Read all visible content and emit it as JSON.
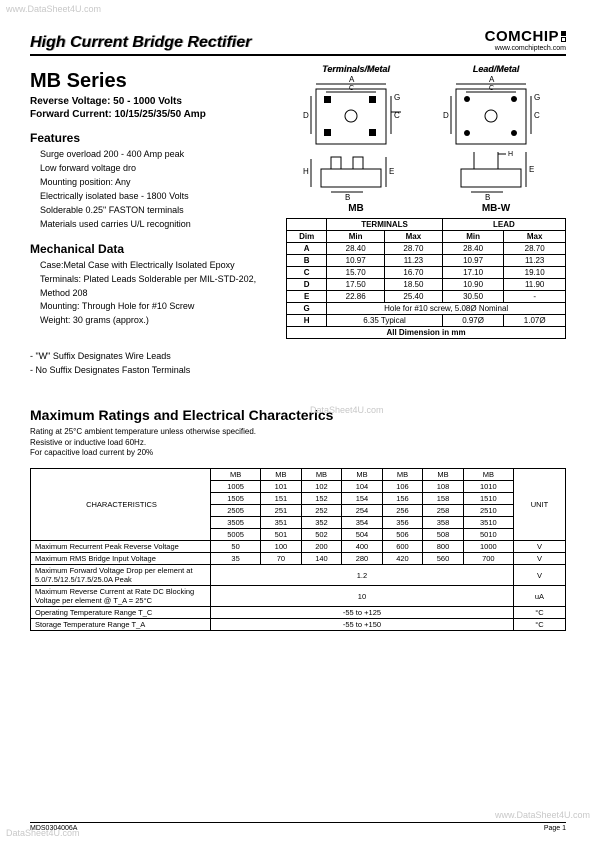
{
  "watermarks": {
    "top": "www.DataSheet4U.com",
    "mid": "DataSheet4U.com",
    "br": "www.DataSheet4U.com",
    "bl": "DataSheet4U.com"
  },
  "header": {
    "title": "High Current Bridge Rectifier",
    "brand": "COMCHIP",
    "brand_url": "www.comchiptech.com"
  },
  "series": {
    "title": "MB Series",
    "reverse": "Reverse Voltage:  50 - 1000 Volts",
    "forward": "Forward Current: 10/15/25/35/50 Amp"
  },
  "features": {
    "title": "Features",
    "items": [
      "Surge overload 200 - 400 Amp peak",
      "Low forward voltage dro",
      "Mounting position: Any",
      "Electrically isolated base - 1800 Volts",
      "Solderable 0.25\" FASTON terminals",
      "Materials used carries U/L recognition"
    ]
  },
  "mechanical": {
    "title": "Mechanical Data",
    "items": [
      "Case:Metal Case with Electrically Isolated Epoxy",
      "Terminals: Plated Leads Solderable per MIL-STD-202, Method 208",
      "Mounting: Through Hole for #10 Screw",
      "Weight: 30 grams (approx.)"
    ]
  },
  "notes": [
    "-   \"W\" Suffix Designates Wire Leads",
    "-   No Suffix Designates Faston Terminals"
  ],
  "diagrams": {
    "left_title": "Terminals/Metal",
    "right_title": "Lead/Metal",
    "left_label": "MB",
    "right_label": "MB-W"
  },
  "dim_table": {
    "head1": [
      "",
      "TERMINALS",
      "LEAD"
    ],
    "head2": [
      "Dim",
      "Min",
      "Max",
      "Min",
      "Max"
    ],
    "rows": [
      [
        "A",
        "28.40",
        "28.70",
        "28.40",
        "28.70"
      ],
      [
        "B",
        "10.97",
        "11.23",
        "10.97",
        "11.23"
      ],
      [
        "C",
        "15.70",
        "16.70",
        "17.10",
        "19.10"
      ],
      [
        "D",
        "17.50",
        "18.50",
        "10.90",
        "11.90"
      ],
      [
        "E",
        "22.86",
        "25.40",
        "30.50",
        "-"
      ]
    ],
    "g_row": [
      "G",
      "Hole for #10 screw, 5.08Ø Nominal"
    ],
    "h_row": [
      "H",
      "6.35 Typical",
      "0.97Ø",
      "1.07Ø"
    ],
    "footer": "All Dimension in mm"
  },
  "ratings": {
    "title": "Maximum Ratings and Electrical Characterics",
    "note1": "Rating at 25°C ambient temperature unless otherwise specified.",
    "note2": "Resistive or inductive load 60Hz.",
    "note3": "For capacitive load current by 20%",
    "char_label": "CHARACTERISTICS",
    "unit_label": "UNIT",
    "col_head": [
      "MB",
      "MB",
      "MB",
      "MB",
      "MB",
      "MB",
      "MB"
    ],
    "part_rows": [
      [
        "1005",
        "101",
        "102",
        "104",
        "106",
        "108",
        "1010"
      ],
      [
        "1505",
        "151",
        "152",
        "154",
        "156",
        "158",
        "1510"
      ],
      [
        "2505",
        "251",
        "252",
        "254",
        "256",
        "258",
        "2510"
      ],
      [
        "3505",
        "351",
        "352",
        "354",
        "356",
        "358",
        "3510"
      ],
      [
        "5005",
        "501",
        "502",
        "504",
        "506",
        "508",
        "5010"
      ]
    ],
    "data_rows": [
      {
        "label": "Maximum Recurrent Peak Reverse Voltage",
        "vals": [
          "50",
          "100",
          "200",
          "400",
          "600",
          "800",
          "1000"
        ],
        "unit": "V"
      },
      {
        "label": "Maximum RMS Bridge Input Voltage",
        "vals": [
          "35",
          "70",
          "140",
          "280",
          "420",
          "560",
          "700"
        ],
        "unit": "V"
      },
      {
        "label": "Maximum Forward Voltage Drop per element at 5.0/7.5/12.5/17.5/25.0A Peak",
        "span": "1.2",
        "unit": "V"
      },
      {
        "label": "Maximum Reverse Current at Rate DC Blocking Voltage per element @  T_A = 25°C",
        "span": "10",
        "unit": "uA"
      },
      {
        "label": "Operating Temperature Range T_C",
        "span": "-55 to +125",
        "unit": "°C"
      },
      {
        "label": "Storage Temperature Range T_A",
        "span": "-55 to +150",
        "unit": "°C"
      }
    ]
  },
  "footer": {
    "left": "MDS0304006A",
    "right": "Page 1"
  }
}
